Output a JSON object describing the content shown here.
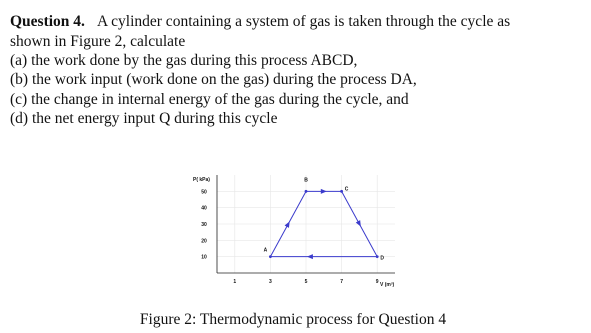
{
  "question": {
    "label": "Question 4.",
    "lines": [
      "A cylinder containing a system of gas is taken through the cycle as",
      "shown in Figure 2, calculate",
      "(a) the work done by the gas during this process ABCD,",
      "(b) the work input (work done on the gas) during the process DA,",
      "(c) the change in internal energy of the gas during the cycle, and",
      "(d) the net energy input Q during this cycle"
    ]
  },
  "chart_data": {
    "type": "line",
    "xlabel": "V (m³)",
    "ylabel": "P( kPa)",
    "x": [
      3,
      5,
      7,
      9
    ],
    "series": [
      {
        "name": null,
        "color": "#3b3bcc",
        "values": [
          10,
          50,
          50,
          10
        ]
      }
    ],
    "point_labels": [
      "A",
      "B",
      "C",
      "D"
    ],
    "closed": true,
    "xlim": [
      0,
      10
    ],
    "ylim": [
      0,
      60
    ],
    "xticks": [
      1,
      3,
      5,
      7,
      9
    ],
    "yticks": [
      10,
      20,
      30,
      40,
      50
    ],
    "grid": true
  },
  "caption": "Figure 2: Thermodynamic process for Question 4"
}
